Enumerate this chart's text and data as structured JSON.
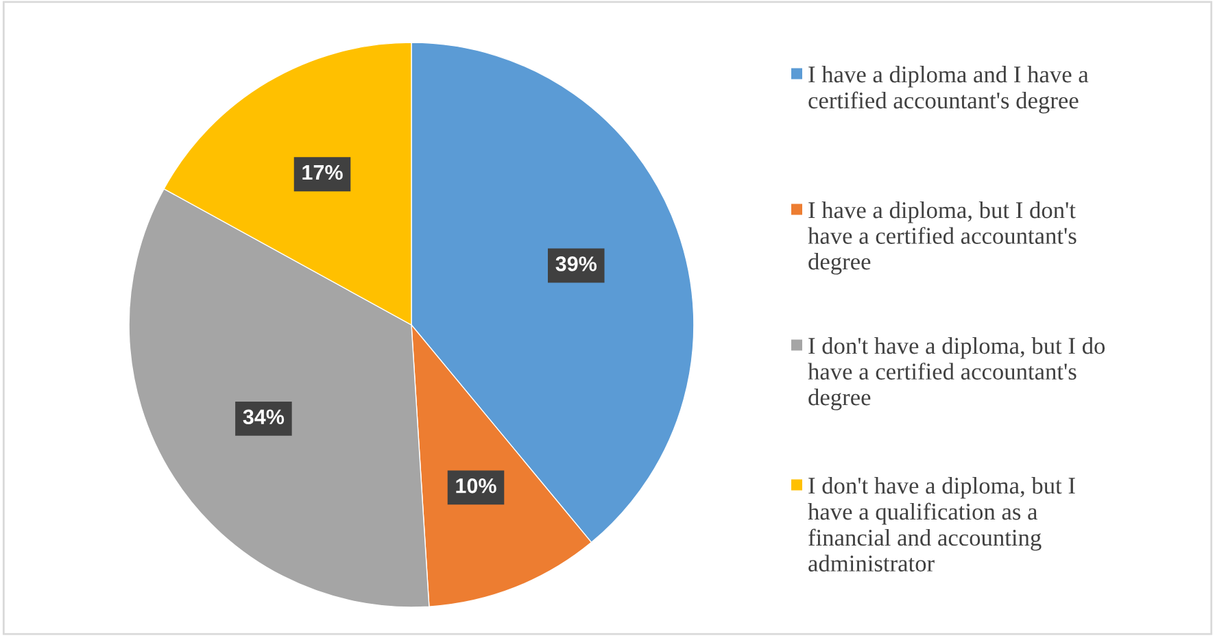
{
  "chart_data": {
    "type": "pie",
    "categories": [
      "I have a diploma and I have a certified accountant's degree",
      "I have a diploma, but I don't have a certified accountant's degree",
      "I don't have a diploma, but I do have a certified accountant's degree",
      "I don't have a diploma, but I have a qualification as a financial and accounting administrator"
    ],
    "values": [
      39,
      10,
      34,
      17
    ],
    "colors": [
      "#5b9bd5",
      "#ed7d31",
      "#a5a5a5",
      "#ffc000"
    ],
    "value_labels": [
      "39%",
      "10%",
      "34%",
      "17%"
    ],
    "legend": "right"
  }
}
